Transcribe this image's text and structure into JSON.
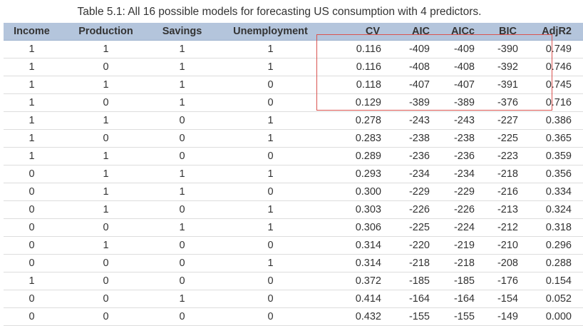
{
  "caption": "Table 5.1: All 16 possible models for forecasting US consumption with 4 predictors.",
  "colors": {
    "header_bg": "#b4c5dc",
    "highlight_border": "#d9534f",
    "row_border": "#dddddd"
  },
  "table": {
    "headers": {
      "income": "Income",
      "production": "Production",
      "savings": "Savings",
      "unemployment": "Unemployment",
      "cv": "CV",
      "aic": "AIC",
      "aicc": "AICc",
      "bic": "BIC",
      "adjr2": "AdjR2"
    },
    "rows": [
      {
        "income": "1",
        "production": "1",
        "savings": "1",
        "unemployment": "1",
        "cv": "0.116",
        "aic": "-409",
        "aicc": "-409",
        "bic": "-390",
        "adjr2": "0.749"
      },
      {
        "income": "1",
        "production": "0",
        "savings": "1",
        "unemployment": "1",
        "cv": "0.116",
        "aic": "-408",
        "aicc": "-408",
        "bic": "-392",
        "adjr2": "0.746"
      },
      {
        "income": "1",
        "production": "1",
        "savings": "1",
        "unemployment": "0",
        "cv": "0.118",
        "aic": "-407",
        "aicc": "-407",
        "bic": "-391",
        "adjr2": "0.745"
      },
      {
        "income": "1",
        "production": "0",
        "savings": "1",
        "unemployment": "0",
        "cv": "0.129",
        "aic": "-389",
        "aicc": "-389",
        "bic": "-376",
        "adjr2": "0.716"
      },
      {
        "income": "1",
        "production": "1",
        "savings": "0",
        "unemployment": "1",
        "cv": "0.278",
        "aic": "-243",
        "aicc": "-243",
        "bic": "-227",
        "adjr2": "0.386"
      },
      {
        "income": "1",
        "production": "0",
        "savings": "0",
        "unemployment": "1",
        "cv": "0.283",
        "aic": "-238",
        "aicc": "-238",
        "bic": "-225",
        "adjr2": "0.365"
      },
      {
        "income": "1",
        "production": "1",
        "savings": "0",
        "unemployment": "0",
        "cv": "0.289",
        "aic": "-236",
        "aicc": "-236",
        "bic": "-223",
        "adjr2": "0.359"
      },
      {
        "income": "0",
        "production": "1",
        "savings": "1",
        "unemployment": "1",
        "cv": "0.293",
        "aic": "-234",
        "aicc": "-234",
        "bic": "-218",
        "adjr2": "0.356"
      },
      {
        "income": "0",
        "production": "1",
        "savings": "1",
        "unemployment": "0",
        "cv": "0.300",
        "aic": "-229",
        "aicc": "-229",
        "bic": "-216",
        "adjr2": "0.334"
      },
      {
        "income": "0",
        "production": "1",
        "savings": "0",
        "unemployment": "1",
        "cv": "0.303",
        "aic": "-226",
        "aicc": "-226",
        "bic": "-213",
        "adjr2": "0.324"
      },
      {
        "income": "0",
        "production": "0",
        "savings": "1",
        "unemployment": "1",
        "cv": "0.306",
        "aic": "-225",
        "aicc": "-224",
        "bic": "-212",
        "adjr2": "0.318"
      },
      {
        "income": "0",
        "production": "1",
        "savings": "0",
        "unemployment": "0",
        "cv": "0.314",
        "aic": "-220",
        "aicc": "-219",
        "bic": "-210",
        "adjr2": "0.296"
      },
      {
        "income": "0",
        "production": "0",
        "savings": "0",
        "unemployment": "1",
        "cv": "0.314",
        "aic": "-218",
        "aicc": "-218",
        "bic": "-208",
        "adjr2": "0.288"
      },
      {
        "income": "1",
        "production": "0",
        "savings": "0",
        "unemployment": "0",
        "cv": "0.372",
        "aic": "-185",
        "aicc": "-185",
        "bic": "-176",
        "adjr2": "0.154"
      },
      {
        "income": "0",
        "production": "0",
        "savings": "1",
        "unemployment": "0",
        "cv": "0.414",
        "aic": "-164",
        "aicc": "-164",
        "bic": "-154",
        "adjr2": "0.052"
      },
      {
        "income": "0",
        "production": "0",
        "savings": "0",
        "unemployment": "0",
        "cv": "0.432",
        "aic": "-155",
        "aicc": "-155",
        "bic": "-149",
        "adjr2": "0.000"
      }
    ]
  }
}
